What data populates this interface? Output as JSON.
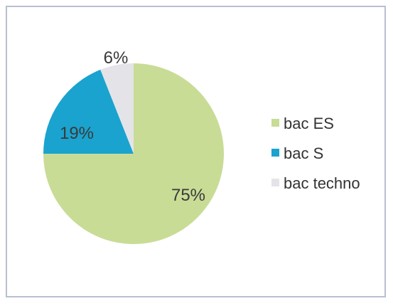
{
  "chart_data": {
    "type": "pie",
    "categories": [
      "bac ES",
      "bac S",
      "bac techno"
    ],
    "values": [
      75,
      19,
      6
    ],
    "data_labels": [
      "75%",
      "19%",
      "6%"
    ],
    "colors": [
      "#c8dc96",
      "#1aa3cf",
      "#e4e4e8"
    ],
    "start_angle_deg": 0,
    "direction": "clockwise",
    "legend": {
      "placement": "right",
      "entries": [
        "bac ES",
        "bac S",
        "bac techno"
      ]
    },
    "title": "",
    "xlabel": "",
    "ylabel": ""
  }
}
